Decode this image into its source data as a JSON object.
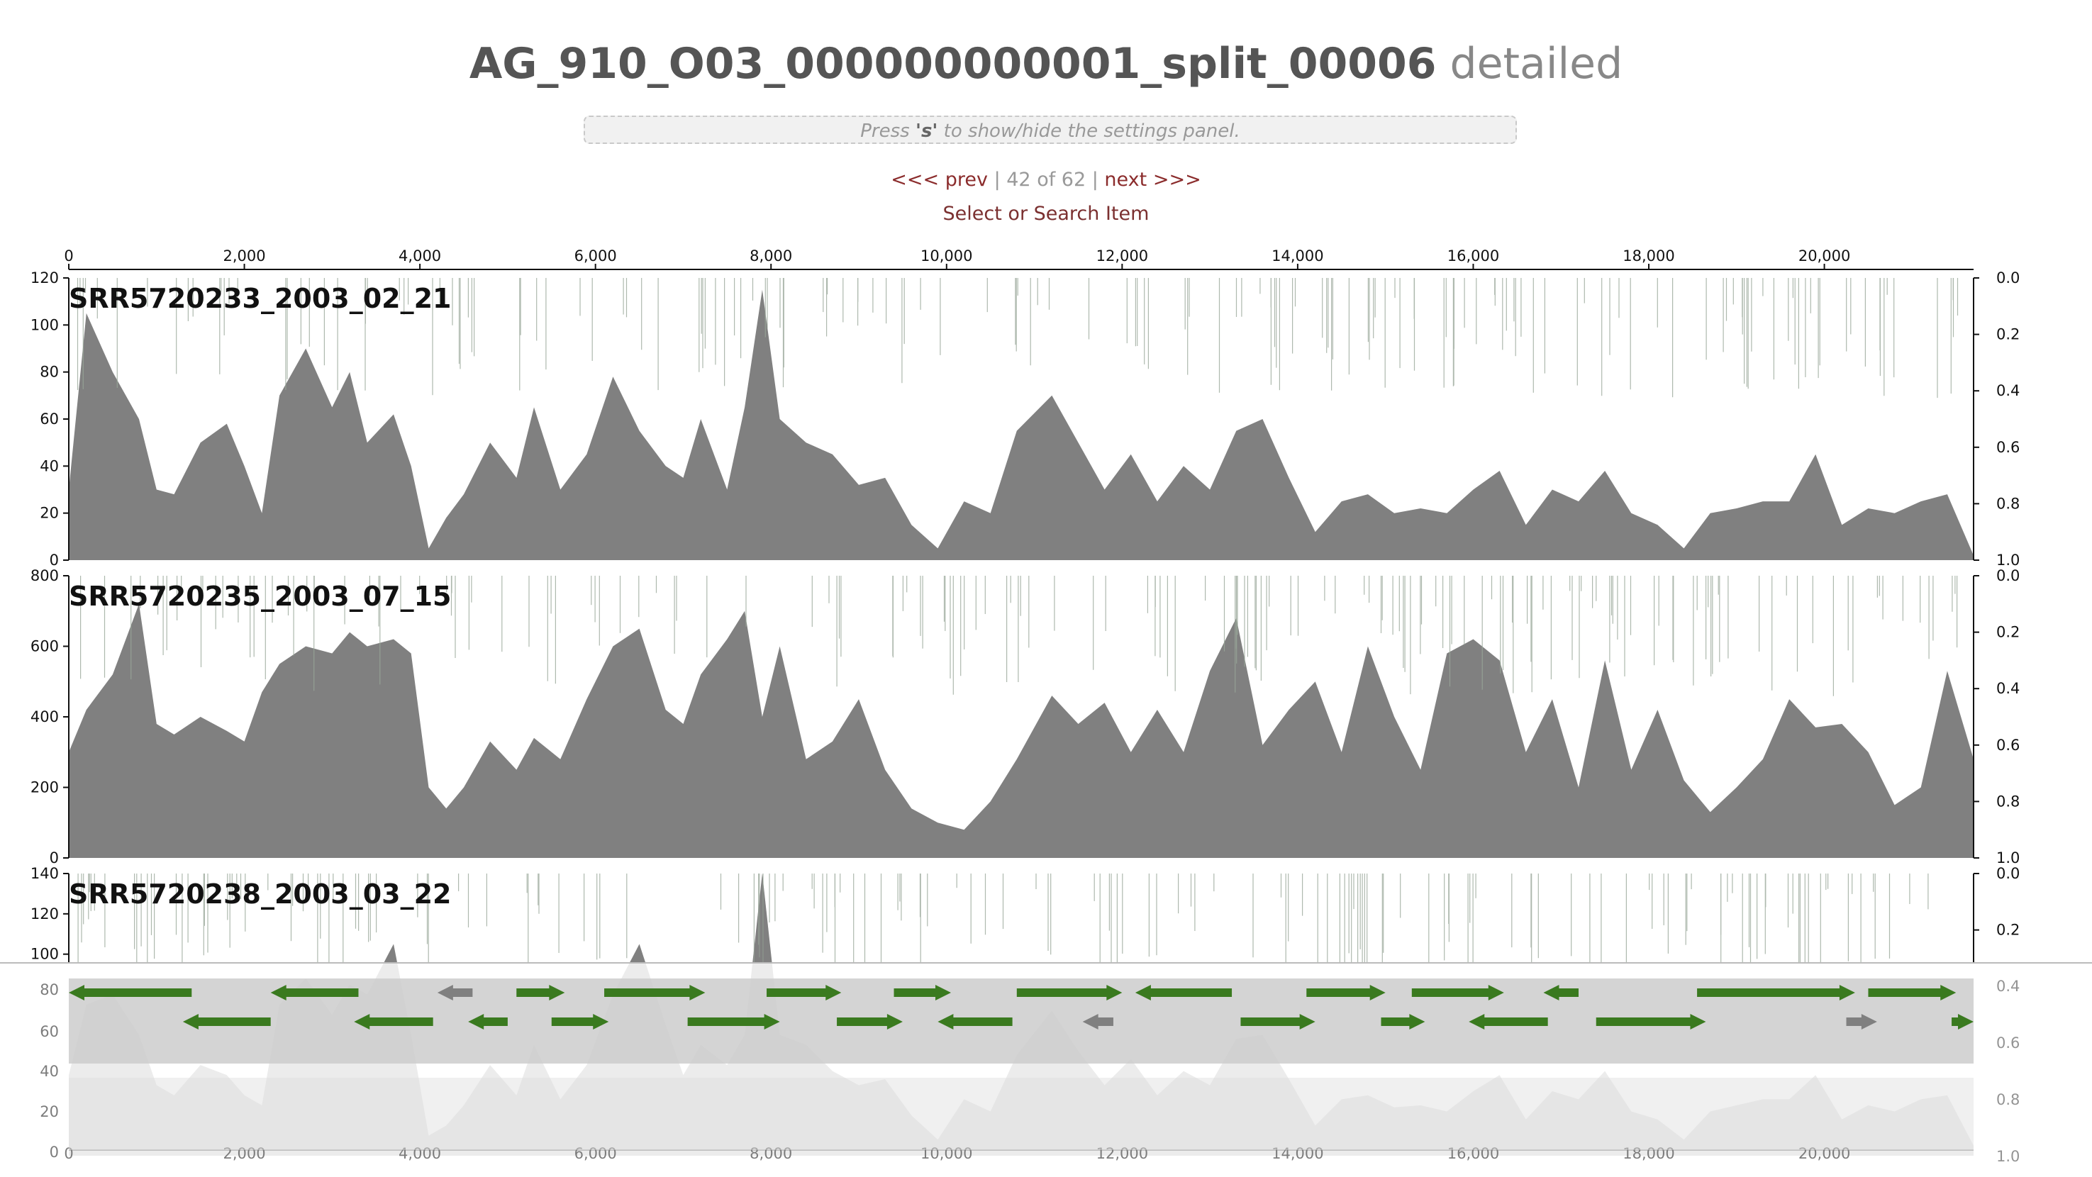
{
  "header": {
    "title_main": "AG_910_O03_000000000001_split_00006",
    "title_suffix": "detailed",
    "settings_hint_pre": "Press ",
    "settings_hint_key": "'s'",
    "settings_hint_post": " to show/hide the settings panel.",
    "prev_label": "<<< prev",
    "page_position": "42 of 62",
    "next_label": "next >>>",
    "search_label": "Select or Search Item"
  },
  "colors": {
    "coverage_fill": "#808080",
    "gene_forward": "#3a7a1f",
    "gene_other": "#808080",
    "gene_band": "#cccccc",
    "variant_lines": "#9aa89a"
  },
  "chart_data": {
    "type": "area",
    "x_axis": {
      "min": 0,
      "max": 21700,
      "ticks": [
        0,
        2000,
        4000,
        6000,
        8000,
        10000,
        12000,
        14000,
        16000,
        18000,
        20000
      ],
      "tick_labels": [
        "0",
        "2,000",
        "4,000",
        "6,000",
        "8,000",
        "10,000",
        "12,000",
        "14,000",
        "16,000",
        "18,000",
        "20,000"
      ]
    },
    "right_axis_ticks": [
      "0.0",
      "0.2",
      "0.4",
      "0.6",
      "0.8",
      "1.0"
    ],
    "samples": [
      {
        "name": "SRR5720233_2003_02_21",
        "ylim": [
          0,
          120
        ],
        "y_tick_labels": [
          "0",
          "20",
          "40",
          "60",
          "80",
          "100",
          "120"
        ],
        "y_ticks": [
          0,
          20,
          40,
          60,
          80,
          100,
          120
        ],
        "x": [
          0,
          200,
          500,
          800,
          1000,
          1200,
          1500,
          1800,
          2000,
          2200,
          2400,
          2700,
          3000,
          3200,
          3400,
          3700,
          3900,
          4100,
          4300,
          4500,
          4800,
          5100,
          5300,
          5600,
          5900,
          6200,
          6500,
          6800,
          7000,
          7200,
          7500,
          7700,
          7900,
          8100,
          8400,
          8700,
          9000,
          9300,
          9600,
          9900,
          10200,
          10500,
          10800,
          11200,
          11500,
          11800,
          12100,
          12400,
          12700,
          13000,
          13300,
          13600,
          13900,
          14200,
          14500,
          14800,
          15100,
          15400,
          15700,
          16000,
          16300,
          16600,
          16900,
          17200,
          17500,
          17800,
          18100,
          18400,
          18700,
          19000,
          19300,
          19600,
          19900,
          20200,
          20500,
          20800,
          21100,
          21400,
          21700
        ],
        "y": [
          30,
          105,
          80,
          60,
          30,
          28,
          50,
          58,
          40,
          20,
          70,
          90,
          65,
          80,
          50,
          62,
          40,
          5,
          18,
          28,
          50,
          35,
          65,
          30,
          45,
          78,
          55,
          40,
          35,
          60,
          30,
          65,
          115,
          60,
          50,
          45,
          32,
          35,
          15,
          5,
          25,
          20,
          55,
          70,
          50,
          30,
          45,
          25,
          40,
          30,
          55,
          60,
          35,
          12,
          25,
          28,
          20,
          22,
          20,
          30,
          38,
          15,
          30,
          25,
          38,
          20,
          15,
          5,
          20,
          22,
          25,
          25,
          45,
          15,
          22,
          20,
          25,
          28,
          2
        ]
      },
      {
        "name": "SRR5720235_2003_07_15",
        "ylim": [
          0,
          800
        ],
        "y_tick_labels": [
          "0",
          "200",
          "400",
          "600",
          "800"
        ],
        "y_ticks": [
          0,
          200,
          400,
          600,
          800
        ],
        "x": [
          0,
          200,
          500,
          800,
          1000,
          1200,
          1500,
          1800,
          2000,
          2200,
          2400,
          2700,
          3000,
          3200,
          3400,
          3700,
          3900,
          4100,
          4300,
          4500,
          4800,
          5100,
          5300,
          5600,
          5900,
          6200,
          6500,
          6800,
          7000,
          7200,
          7500,
          7700,
          7900,
          8100,
          8400,
          8700,
          9000,
          9300,
          9600,
          9900,
          10200,
          10500,
          10800,
          11200,
          11500,
          11800,
          12100,
          12400,
          12700,
          13000,
          13300,
          13600,
          13900,
          14200,
          14500,
          14800,
          15100,
          15400,
          15700,
          16000,
          16300,
          16600,
          16900,
          17200,
          17500,
          17800,
          18100,
          18400,
          18700,
          19000,
          19300,
          19600,
          19900,
          20200,
          20500,
          20800,
          21100,
          21400,
          21700
        ],
        "y": [
          300,
          420,
          520,
          720,
          380,
          350,
          400,
          360,
          330,
          470,
          550,
          600,
          580,
          640,
          600,
          620,
          580,
          200,
          140,
          200,
          330,
          250,
          340,
          280,
          450,
          600,
          650,
          420,
          380,
          520,
          620,
          700,
          400,
          600,
          280,
          330,
          450,
          250,
          140,
          100,
          80,
          160,
          280,
          460,
          380,
          440,
          300,
          420,
          300,
          530,
          680,
          320,
          420,
          500,
          300,
          600,
          400,
          250,
          580,
          620,
          560,
          300,
          450,
          200,
          560,
          250,
          420,
          220,
          130,
          200,
          280,
          450,
          370,
          380,
          300,
          150,
          200,
          530,
          280
        ]
      },
      {
        "name": "SRR5720238_2003_03_22",
        "ylim": [
          0,
          140
        ],
        "y_tick_labels": [
          "0",
          "20",
          "40",
          "60",
          "80",
          "100",
          "120",
          "140"
        ],
        "y_ticks": [
          0,
          20,
          40,
          60,
          80,
          100,
          120,
          140
        ],
        "x": [
          0,
          200,
          500,
          800,
          1000,
          1200,
          1500,
          1800,
          2000,
          2200,
          2400,
          2700,
          3000,
          3200,
          3400,
          3700,
          3900,
          4100,
          4300,
          4500,
          4800,
          5100,
          5300,
          5600,
          5900,
          6200,
          6500,
          6800,
          7000,
          7200,
          7500,
          7700,
          7900,
          8100,
          8400,
          8700,
          9000,
          9300,
          9600,
          9900,
          10200,
          10500,
          10800,
          11200,
          11500,
          11800,
          12100,
          12400,
          12700,
          13000,
          13300,
          13600,
          13900,
          14200,
          14500,
          14800,
          15100,
          15400,
          15700,
          16000,
          16300,
          16600,
          16900,
          17200,
          17500,
          17800,
          18100,
          18400,
          18700,
          19000,
          19300,
          19600,
          19900,
          20200,
          20500,
          20800,
          21100,
          21400,
          21700
        ],
        "y": [
          40,
          75,
          80,
          60,
          35,
          30,
          45,
          40,
          30,
          25,
          75,
          88,
          70,
          85,
          80,
          105,
          60,
          10,
          15,
          25,
          45,
          30,
          55,
          28,
          45,
          80,
          105,
          65,
          40,
          55,
          45,
          60,
          140,
          60,
          55,
          42,
          35,
          38,
          20,
          8,
          28,
          22,
          50,
          72,
          52,
          35,
          48,
          30,
          42,
          35,
          58,
          60,
          38,
          15,
          28,
          30,
          24,
          25,
          22,
          32,
          40,
          18,
          32,
          28,
          42,
          22,
          18,
          8,
          22,
          25,
          28,
          28,
          40,
          18,
          25,
          22,
          28,
          30,
          5
        ]
      }
    ],
    "genes_row1": [
      {
        "start": 1400,
        "end": 0,
        "dir": "rev",
        "color": "green"
      },
      {
        "start": 3300,
        "end": 2300,
        "dir": "rev",
        "color": "green"
      },
      {
        "start": 4600,
        "end": 4200,
        "dir": "rev",
        "color": "gray"
      },
      {
        "start": 5100,
        "end": 5650,
        "dir": "fwd",
        "color": "green"
      },
      {
        "start": 6100,
        "end": 7250,
        "dir": "fwd",
        "color": "green"
      },
      {
        "start": 7950,
        "end": 8800,
        "dir": "fwd",
        "color": "green"
      },
      {
        "start": 9400,
        "end": 10050,
        "dir": "fwd",
        "color": "green"
      },
      {
        "start": 10800,
        "end": 12000,
        "dir": "fwd",
        "color": "green"
      },
      {
        "start": 13250,
        "end": 12150,
        "dir": "rev",
        "color": "green"
      },
      {
        "start": 14100,
        "end": 15000,
        "dir": "fwd",
        "color": "green"
      },
      {
        "start": 15300,
        "end": 16350,
        "dir": "fwd",
        "color": "green"
      },
      {
        "start": 17200,
        "end": 16800,
        "dir": "rev",
        "color": "green"
      },
      {
        "start": 18550,
        "end": 20350,
        "dir": "fwd",
        "color": "green"
      },
      {
        "start": 20500,
        "end": 21500,
        "dir": "fwd",
        "color": "green"
      }
    ],
    "genes_row2": [
      {
        "start": 2300,
        "end": 1300,
        "dir": "rev",
        "color": "green"
      },
      {
        "start": 4150,
        "end": 3250,
        "dir": "rev",
        "color": "green"
      },
      {
        "start": 5000,
        "end": 4550,
        "dir": "rev",
        "color": "green"
      },
      {
        "start": 5500,
        "end": 6150,
        "dir": "fwd",
        "color": "green"
      },
      {
        "start": 7050,
        "end": 8100,
        "dir": "fwd",
        "color": "green"
      },
      {
        "start": 8750,
        "end": 9500,
        "dir": "fwd",
        "color": "green"
      },
      {
        "start": 10750,
        "end": 9900,
        "dir": "rev",
        "color": "green"
      },
      {
        "start": 11900,
        "end": 11550,
        "dir": "rev",
        "color": "gray"
      },
      {
        "start": 13350,
        "end": 14200,
        "dir": "fwd",
        "color": "green"
      },
      {
        "start": 14950,
        "end": 15450,
        "dir": "fwd",
        "color": "green"
      },
      {
        "start": 16850,
        "end": 15950,
        "dir": "rev",
        "color": "green"
      },
      {
        "start": 17400,
        "end": 18650,
        "dir": "fwd",
        "color": "green"
      },
      {
        "start": 20250,
        "end": 20600,
        "dir": "fwd",
        "color": "gray"
      },
      {
        "start": 21450,
        "end": 21700,
        "dir": "fwd",
        "color": "green"
      }
    ]
  }
}
